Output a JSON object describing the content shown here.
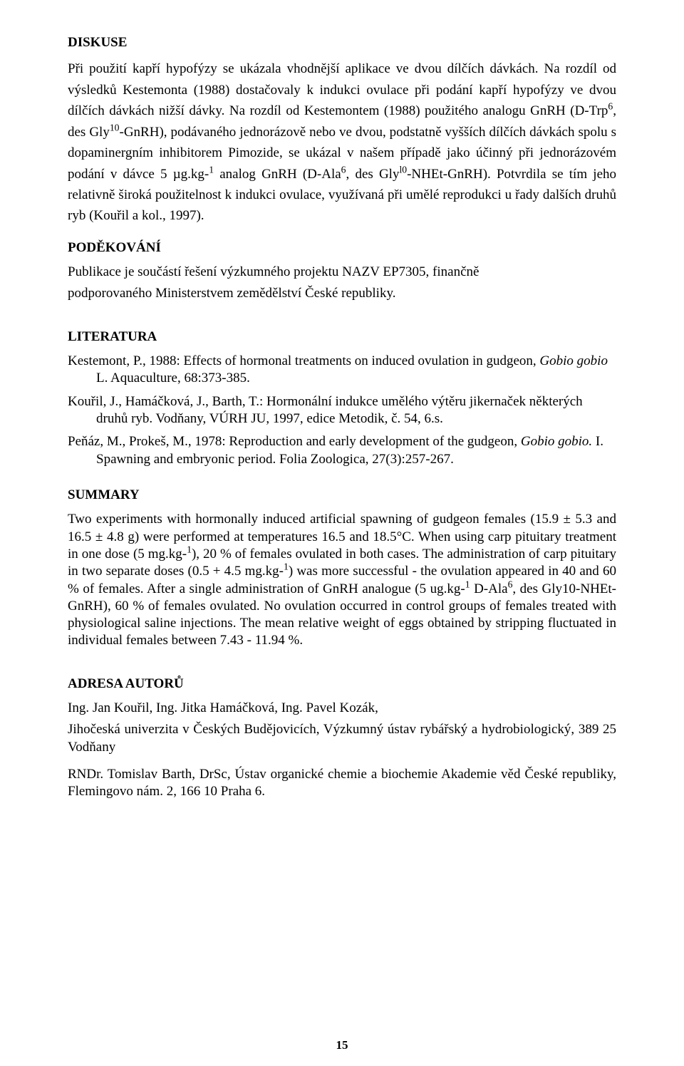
{
  "page_number": "15",
  "colors": {
    "text": "#000000",
    "background": "#ffffff"
  },
  "typography": {
    "family": "Times New Roman",
    "body_size_pt": 14,
    "heading_weight": "bold"
  },
  "sections": {
    "diskuse": {
      "heading": "DISKUSE",
      "body_html": "Při použití kapří hypofýzy se ukázala vhodnější aplikace ve dvou dílčích dávkách. Na rozdíl od výsledků Kestemonta (1988) dostačovaly k indukci ovulace při podání kapří hypofýzy ve dvou dílčích dávkách nižší dávky. Na rozdíl od Kestemontem (1988) použitého analogu GnRH (D-Trp<sup>6</sup>, des Gly<sup>10</sup>-GnRH), podávaného jednorázově nebo ve dvou, podstatně vyšších dílčích dávkách spolu s dopaminergním inhibitorem Pimozide, se ukázal v našem případě jako účinný při jednorázovém podání v dávce 5 µg.kg-<sup>1</sup> analog GnRH (D-Ala<sup>6</sup>, des Gly<sup>l0</sup>-NHEt-GnRH). Potvrdila se tím jeho relativně široká použitelnost k indukci ovulace, využívaná při umělé reprodukci u řady dalších druhů ryb (Kouřil a kol., 1997)."
    },
    "podekovani": {
      "heading": "PODĚKOVÁNÍ",
      "line1": "Publikace je součástí řešení výzkumného projektu NAZV EP7305, finančně",
      "line2": "podporovaného Ministerstvem zemědělství České republiky."
    },
    "literatura": {
      "heading": "LITERATURA",
      "refs": [
        "Kestemont, P., 1988: Effects of hormonal treatments on induced ovulation in gudgeon, <i>Gobio gobio</i> L. Aquaculture, 68:373-385.",
        "Kouřil, J., Hamáčková, J., Barth, T.: Hormonální indukce umělého výtěru jikernaček některých druhů ryb. Vodňany, VÚRH JU, 1997, edice Metodik, č. 54, 6.s.",
        "Peňáz, M., Prokeš, M., 1978: Reproduction and early development of the gudgeon, <i>Gobio gobio.</i> I. Spawning and embryonic period. Folia Zoologica, 27(3):257-267."
      ]
    },
    "summary": {
      "heading": "SUMMARY",
      "body_html": "Two experiments with hormonally induced artificial spawning of gudgeon females (15.9 ± 5.3 and 16.5 ± 4.8 g) were performed at temperatures 16.5 and 18.5°C. When using carp pituitary treatment in one dose (5 mg.kg-<sup>1</sup>), 20 % of females ovulated in both cases. The administration of carp pituitary in two separate doses (0.5 + 4.5 mg.kg-<sup>1</sup>) was more successful - the ovulation appeared in 40 and 60 % of females. After a single administration of GnRH analogue (5 ug.kg-<sup>1</sup> D-Ala<sup>6</sup>, des Gly10-NHEt-GnRH), 60 % of females ovulated. No ovulation occurred in control groups of females treated with physiological saline injections. The mean relative weight of eggs obtained by stripping fluctuated in individual females between 7.43 - 11.94 %."
    },
    "adresa": {
      "heading": "ADRESA AUTORŮ",
      "line1": "Ing. Jan Kouřil, Ing. Jitka Hamáčková, Ing. Pavel Kozák,",
      "line2": "Jihočeská univerzita v Českých Budějovicích, Výzkumný ústav rybářský a hydrobiologický, 389 25 Vodňany",
      "line3": "RNDr. Tomislav Barth, DrSc, Ústav organické chemie a biochemie Akademie věd České republiky, Flemingovo nám. 2, 166 10 Praha 6."
    }
  }
}
